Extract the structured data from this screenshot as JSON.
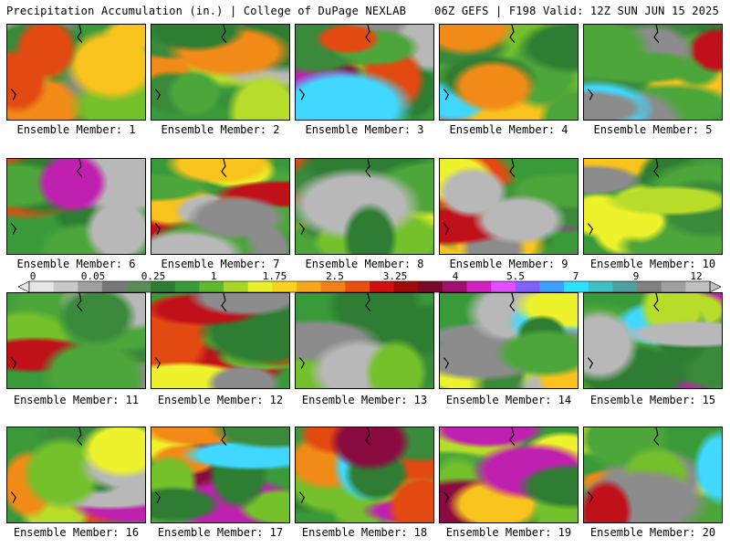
{
  "header": {
    "left": "Precipitation Accumulation (in.) | College of DuPage NEXLAB",
    "right": "06Z GEFS | F198 Valid: 12Z SUN JUN 15 2025"
  },
  "panels": [
    {
      "label": "Ensemble Member: 1"
    },
    {
      "label": "Ensemble Member: 2"
    },
    {
      "label": "Ensemble Member: 3"
    },
    {
      "label": "Ensemble Member: 4"
    },
    {
      "label": "Ensemble Member: 5"
    },
    {
      "label": "Ensemble Member: 6"
    },
    {
      "label": "Ensemble Member: 7"
    },
    {
      "label": "Ensemble Member: 8"
    },
    {
      "label": "Ensemble Member: 9"
    },
    {
      "label": "Ensemble Member: 10"
    },
    {
      "label": "Ensemble Member: 11"
    },
    {
      "label": "Ensemble Member: 12"
    },
    {
      "label": "Ensemble Member: 13"
    },
    {
      "label": "Ensemble Member: 14"
    },
    {
      "label": "Ensemble Member: 15"
    },
    {
      "label": "Ensemble Member: 16"
    },
    {
      "label": "Ensemble Member: 17"
    },
    {
      "label": "Ensemble Member: 18"
    },
    {
      "label": "Ensemble Member: 19"
    },
    {
      "label": "Ensemble Member: 20"
    }
  ],
  "colorbar": {
    "tick_labels": [
      "0",
      "0.05",
      "0.25",
      "1",
      "1.75",
      "2.5",
      "3.25",
      "4",
      "5.5",
      "7",
      "9",
      "12"
    ],
    "colors": [
      "#e6e6e6",
      "#c8c8c8",
      "#a0a0a0",
      "#787878",
      "#5a8c5a",
      "#2e7d32",
      "#3b9a3b",
      "#5fb82e",
      "#a6d62a",
      "#e8f22c",
      "#f7d21e",
      "#f5a81a",
      "#f07f16",
      "#e84f12",
      "#d01010",
      "#a00a0a",
      "#7a0a2a",
      "#a01070",
      "#d020c0",
      "#e050ff",
      "#8060ff",
      "#40a0ff",
      "#30e0ff",
      "#40c0c0",
      "#50a0a0",
      "#808080",
      "#a0a0a0",
      "#c0c0c0"
    ]
  }
}
